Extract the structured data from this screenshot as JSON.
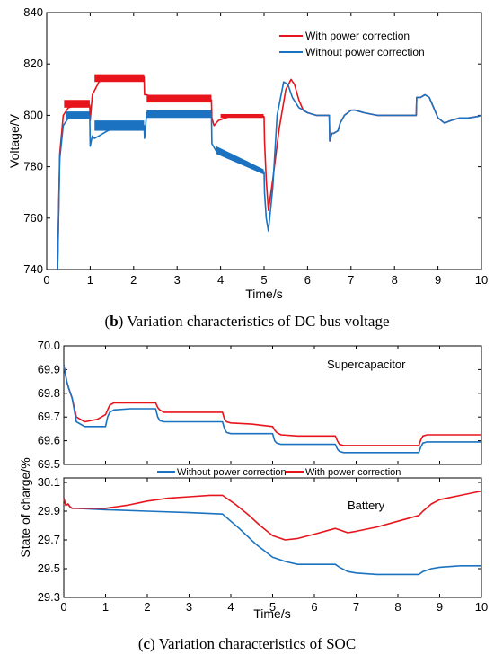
{
  "colors": {
    "with": "#e8141c",
    "without": "#1a72c0"
  },
  "captions": {
    "b": {
      "letter": "b",
      "text": " Variation characteristics of DC bus voltage"
    },
    "c": {
      "letter": "c",
      "text": " Variation characteristics of SOC"
    }
  },
  "chart_data": [
    {
      "type": "line",
      "id": "b",
      "xlabel": "Time/s",
      "ylabel": "Voltage/V",
      "xlim": [
        0,
        10
      ],
      "ylim": [
        740,
        840
      ],
      "xticks": [
        0,
        1,
        2,
        3,
        4,
        5,
        6,
        7,
        8,
        9,
        10
      ],
      "yticks": [
        740,
        760,
        780,
        800,
        820,
        840
      ],
      "legend_position": "top-right",
      "series": [
        {
          "name": "With power correction",
          "color_key": "with",
          "x": [
            0.25,
            0.3,
            0.38,
            0.5,
            0.7,
            0.99,
            1.0,
            1.05,
            1.2,
            1.4,
            1.7,
            2.0,
            2.24,
            2.25,
            2.3,
            2.45,
            2.7,
            3.0,
            3.5,
            3.79,
            3.8,
            3.85,
            3.95,
            4.2,
            4.6,
            5.0,
            5.01,
            5.05,
            5.1,
            5.2,
            5.35,
            5.5,
            5.62,
            5.7,
            5.8,
            5.9,
            6.0,
            6.2,
            6.5,
            6.51,
            6.56,
            6.6,
            6.7,
            6.75,
            6.85,
            7.0,
            7.1,
            7.3,
            7.6,
            8.0,
            8.5,
            8.51,
            8.55,
            8.6,
            8.7,
            8.8,
            8.9,
            9.0,
            9.15,
            9.3,
            9.5,
            9.7,
            9.9,
            10.0
          ],
          "y": [
            740,
            785,
            800,
            803,
            804,
            804,
            798,
            808,
            813,
            815,
            815,
            815,
            815,
            808,
            808,
            807,
            806,
            806,
            806,
            806,
            799,
            796,
            798,
            799.5,
            799.5,
            799.5,
            790,
            775,
            763,
            775,
            795,
            810,
            814,
            812,
            806,
            802,
            801,
            800,
            800,
            790,
            793,
            793,
            794,
            797,
            800,
            802,
            802,
            801,
            800,
            800,
            800,
            807,
            807,
            807,
            808,
            807,
            803,
            799,
            797,
            798,
            799,
            799,
            799.5,
            800
          ]
        },
        {
          "name": "Without power correction",
          "color_key": "without",
          "x": [
            0.25,
            0.3,
            0.38,
            0.5,
            0.7,
            0.99,
            1.0,
            1.05,
            1.1,
            1.2,
            1.4,
            1.7,
            2.0,
            2.24,
            2.25,
            2.3,
            2.4,
            2.6,
            3.0,
            3.5,
            3.79,
            3.8,
            3.9,
            4.0,
            4.3,
            4.6,
            4.9,
            5.0,
            5.01,
            5.05,
            5.1,
            5.2,
            5.3,
            5.45,
            5.55,
            5.65,
            5.8,
            6.0,
            6.2,
            6.5,
            6.51,
            6.56,
            6.6,
            6.7,
            6.75,
            6.85,
            7.0,
            7.1,
            7.3,
            7.6,
            8.0,
            8.5,
            8.51,
            8.55,
            8.6,
            8.7,
            8.8,
            8.9,
            9.0,
            9.15,
            9.3,
            9.5,
            9.7,
            9.9,
            10.0
          ],
          "y": [
            740,
            783,
            796,
            799,
            800,
            800,
            788,
            792,
            791,
            792,
            794,
            796,
            796,
            796,
            791,
            801,
            802,
            801,
            800.5,
            800.5,
            800.5,
            789,
            786,
            785.5,
            784,
            782,
            779,
            778,
            770,
            760,
            755,
            772,
            800,
            813,
            812,
            807,
            803,
            801,
            800,
            800,
            790,
            793,
            793,
            794,
            797,
            800,
            802,
            802,
            801,
            800,
            800,
            800,
            807,
            807,
            807,
            808,
            807,
            803,
            799,
            797,
            798,
            799,
            799,
            799.5,
            800
          ]
        }
      ]
    },
    {
      "type": "line",
      "id": "c-top",
      "annotation": "Supercapacitor",
      "xlim": [
        0,
        10
      ],
      "ylim": [
        69.5,
        70
      ],
      "yticks": [
        69.5,
        69.6,
        69.7,
        69.8,
        69.9,
        70
      ],
      "series": [
        {
          "name": "With power correction",
          "color_key": "with",
          "x": [
            0,
            0.03,
            0.07,
            0.12,
            0.2,
            0.3,
            0.5,
            0.8,
            1.0,
            1.05,
            1.1,
            1.2,
            1.6,
            2.0,
            2.2,
            2.25,
            2.3,
            2.4,
            3.0,
            3.7,
            3.8,
            3.85,
            3.9,
            4.0,
            4.5,
            5.0,
            5.05,
            5.1,
            5.2,
            5.6,
            6.0,
            6.5,
            6.55,
            6.6,
            6.7,
            7.0,
            7.5,
            8.0,
            8.5,
            8.55,
            8.6,
            8.7,
            9.0,
            9.5,
            10.0
          ],
          "y": [
            69.92,
            69.89,
            69.85,
            69.82,
            69.78,
            69.7,
            69.68,
            69.69,
            69.71,
            69.73,
            69.75,
            69.76,
            69.76,
            69.76,
            69.76,
            69.74,
            69.73,
            69.72,
            69.72,
            69.72,
            69.72,
            69.69,
            69.68,
            69.675,
            69.67,
            69.66,
            69.645,
            69.635,
            69.625,
            69.62,
            69.62,
            69.62,
            69.6,
            69.585,
            69.58,
            69.58,
            69.58,
            69.58,
            69.58,
            69.605,
            69.62,
            69.625,
            69.625,
            69.625,
            69.625
          ]
        },
        {
          "name": "Without power correction",
          "color_key": "without",
          "x": [
            0,
            0.03,
            0.07,
            0.12,
            0.2,
            0.3,
            0.5,
            0.8,
            1.0,
            1.05,
            1.1,
            1.2,
            1.6,
            2.0,
            2.2,
            2.25,
            2.3,
            2.4,
            3.0,
            3.7,
            3.8,
            3.85,
            3.9,
            4.0,
            4.5,
            5.0,
            5.05,
            5.1,
            5.2,
            5.6,
            6.0,
            6.5,
            6.55,
            6.6,
            6.7,
            7.0,
            7.5,
            8.0,
            8.5,
            8.55,
            8.6,
            8.7,
            9.0,
            9.5,
            10.0
          ],
          "y": [
            69.92,
            69.89,
            69.85,
            69.82,
            69.78,
            69.68,
            69.66,
            69.66,
            69.66,
            69.7,
            69.72,
            69.73,
            69.735,
            69.735,
            69.735,
            69.7,
            69.685,
            69.68,
            69.68,
            69.68,
            69.68,
            69.65,
            69.635,
            69.63,
            69.63,
            69.63,
            69.6,
            69.59,
            69.585,
            69.585,
            69.585,
            69.585,
            69.565,
            69.555,
            69.55,
            69.55,
            69.55,
            69.55,
            69.55,
            69.575,
            69.59,
            69.595,
            69.595,
            69.595,
            69.595
          ]
        }
      ]
    },
    {
      "type": "line",
      "id": "c-bottom",
      "annotation": "Battery",
      "xlabel": "Time/s",
      "xlim": [
        0,
        10
      ],
      "ylim": [
        29.3,
        30.1
      ],
      "xticks": [
        0,
        1,
        2,
        3,
        4,
        5,
        6,
        7,
        8,
        9,
        10
      ],
      "yticks": [
        29.3,
        29.5,
        29.7,
        29.9,
        30.1
      ],
      "legend_position": "top",
      "series": [
        {
          "name": "Without power correction",
          "color_key": "without",
          "x": [
            0,
            0.05,
            0.1,
            0.15,
            0.2,
            0.3,
            1.0,
            2.0,
            3.0,
            3.8,
            4.2,
            4.6,
            5.0,
            5.3,
            5.6,
            6.0,
            6.5,
            6.6,
            6.8,
            7.0,
            7.5,
            8.0,
            8.5,
            8.6,
            8.8,
            9.0,
            9.5,
            10.0
          ],
          "y": [
            29.99,
            29.94,
            29.95,
            29.93,
            29.92,
            29.92,
            29.91,
            29.9,
            29.89,
            29.88,
            29.78,
            29.67,
            29.58,
            29.55,
            29.53,
            29.53,
            29.53,
            29.51,
            29.48,
            29.47,
            29.46,
            29.46,
            29.46,
            29.48,
            29.5,
            29.51,
            29.52,
            29.52
          ]
        },
        {
          "name": "With power correction",
          "color_key": "with",
          "x": [
            0,
            0.05,
            0.1,
            0.15,
            0.2,
            0.3,
            1.0,
            1.5,
            2.0,
            2.5,
            3.0,
            3.5,
            3.8,
            4.1,
            4.4,
            4.7,
            5.0,
            5.3,
            5.6,
            6.0,
            6.5,
            6.6,
            6.8,
            7.0,
            7.5,
            8.0,
            8.5,
            8.6,
            8.8,
            9.0,
            9.5,
            10.0
          ],
          "y": [
            29.99,
            29.94,
            29.95,
            29.93,
            29.92,
            29.92,
            29.92,
            29.94,
            29.97,
            29.99,
            30.0,
            30.01,
            30.01,
            29.95,
            29.88,
            29.8,
            29.73,
            29.7,
            29.71,
            29.74,
            29.78,
            29.77,
            29.75,
            29.76,
            29.79,
            29.83,
            29.87,
            29.9,
            29.95,
            29.98,
            30.01,
            30.04
          ]
        }
      ]
    }
  ]
}
